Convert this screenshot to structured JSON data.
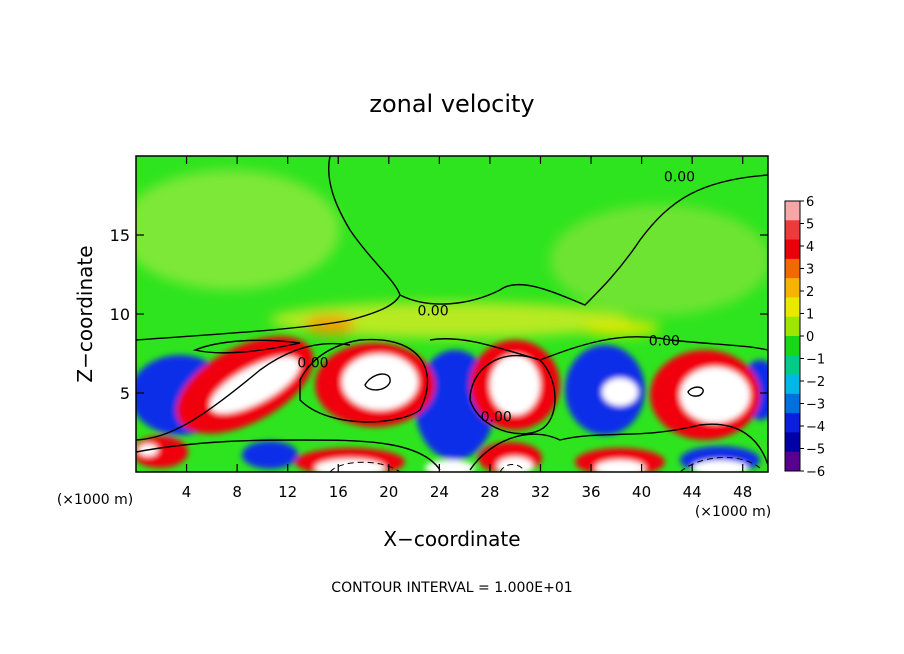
{
  "chart_data": {
    "type": "heatmap",
    "title": "zonal velocity",
    "xlabel": "X−coordinate",
    "ylabel": "Z−coordinate",
    "x_unit_label": "(×1000 m)",
    "x_unit_label_right": "(×1000 m)",
    "footer": "CONTOUR INTERVAL = 1.000E+01",
    "xlim": [
      0,
      50
    ],
    "ylim": [
      0,
      20
    ],
    "x_ticks": [
      4,
      8,
      12,
      16,
      20,
      24,
      28,
      32,
      36,
      40,
      44,
      48
    ],
    "y_ticks": [
      5,
      10,
      15
    ],
    "colorbar": {
      "min": -6,
      "max": 6,
      "tick_labels": [
        "6",
        "5",
        "4",
        "3",
        "2",
        "1",
        "0",
        "−1",
        "−2",
        "−3",
        "−4",
        "−5",
        "−6"
      ],
      "colors": [
        "#f6a6a6",
        "#ee3a3a",
        "#e8000a",
        "#f06a00",
        "#f5b400",
        "#e8e800",
        "#9ee600",
        "#16d816",
        "#00cc88",
        "#00b8e8",
        "#0070e0",
        "#0a1ee0",
        "#0000a8",
        "#5a0090"
      ]
    },
    "contour_labels": [
      {
        "text": "0.00",
        "x": 43,
        "y": 18.4
      },
      {
        "text": "0.00",
        "x": 23.5,
        "y": 9.9
      },
      {
        "text": "0.00",
        "x": 14,
        "y": 6.6
      },
      {
        "text": "0.00",
        "x": 28.5,
        "y": 3.2
      },
      {
        "text": "0.00",
        "x": 41.8,
        "y": 8.0
      }
    ],
    "contour_interval": 10.0,
    "layers": {
      "upper": "approximately 0 to +1 (green) above about z = 9",
      "mid": "alternating cells of about +6 (red/white) and about −6 (blue) between z = 1 and 8",
      "lower": "alternating cells near the surface below z = 2"
    }
  }
}
